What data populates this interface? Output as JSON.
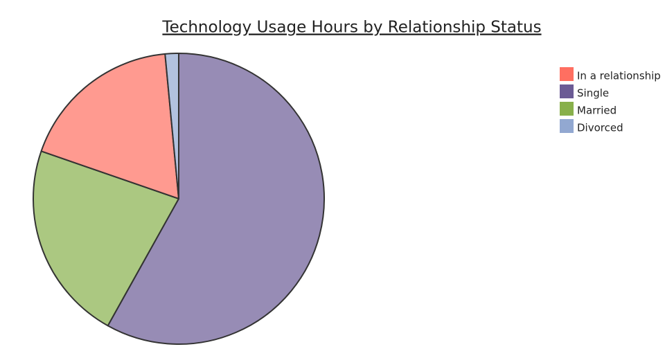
{
  "chart_data": {
    "type": "pie",
    "title": "Technology Usage Hours by Relationship Status",
    "categories": [
      "In a relationship",
      "Single",
      "Married",
      "Divorced"
    ],
    "values": [
      18.2,
      58.1,
      22.2,
      1.5
    ],
    "colors": [
      "#ff6f61",
      "#6b5b95",
      "#88b04b",
      "#92a8d1"
    ],
    "legend": "top-right"
  }
}
